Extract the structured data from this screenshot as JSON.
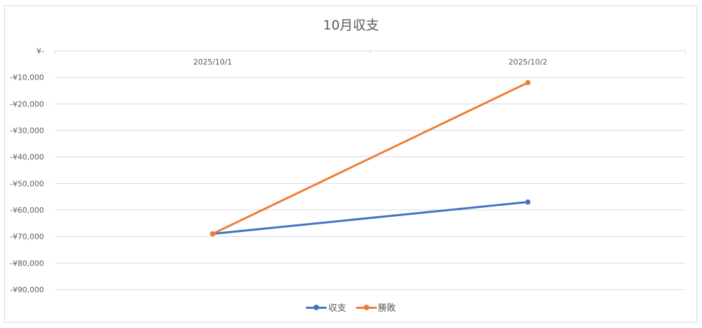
{
  "chart_data": {
    "type": "line",
    "title": "10月収支",
    "xlabel": "",
    "ylabel": "",
    "categories": [
      "2025/10/1",
      "2025/10/2"
    ],
    "y_tick_labels": [
      "¥-",
      "-¥10,000",
      "-¥20,000",
      "-¥30,000",
      "-¥40,000",
      "-¥50,000",
      "-¥60,000",
      "-¥70,000",
      "-¥80,000",
      "-¥90,000"
    ],
    "ylim": [
      -90000,
      0
    ],
    "grid": true,
    "legend": "bottom",
    "series": [
      {
        "name": "収支",
        "color": "#4472c4",
        "values": [
          -69000,
          -57000
        ]
      },
      {
        "name": "勝敗",
        "color": "#ed7d31",
        "values": [
          -69000,
          -12000
        ]
      }
    ]
  }
}
